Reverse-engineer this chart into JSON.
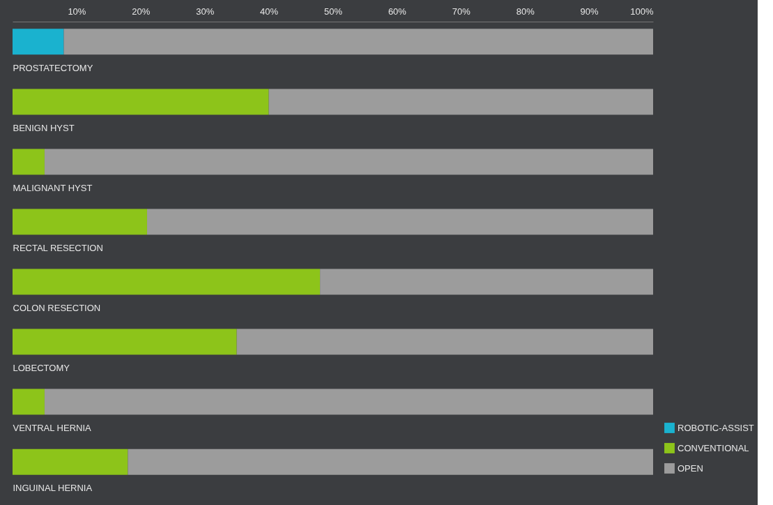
{
  "chart_data": {
    "type": "bar",
    "orientation": "horizontal",
    "stacked": true,
    "categories": [
      "PROSTATECTOMY",
      "BENIGN HYST",
      "MALIGNANT HYST",
      "RECTAL RESECTION",
      "COLON RESECTION",
      "LOBECTOMY",
      "VENTRAL HERNIA",
      "INGUINAL HERNIA"
    ],
    "series": [
      {
        "name": "ROBOTIC-ASSIST",
        "color": "#1ab2cf",
        "values": [
          8,
          null,
          null,
          null,
          null,
          null,
          null,
          null
        ]
      },
      {
        "name": "CONVENTIONAL",
        "color": "#8dc41a",
        "values": [
          null,
          40,
          5,
          21,
          48,
          35,
          5,
          18
        ]
      },
      {
        "name": "OPEN",
        "color": "#9c9c9c",
        "values": [
          92,
          60,
          95,
          79,
          52,
          65,
          95,
          82
        ]
      }
    ],
    "xlim": [
      0,
      100
    ],
    "xticks": [
      {
        "value": 10,
        "label": "10%"
      },
      {
        "value": 20,
        "label": "20%"
      },
      {
        "value": 30,
        "label": "30%"
      },
      {
        "value": 40,
        "label": "40%"
      },
      {
        "value": 50,
        "label": "50%"
      },
      {
        "value": 60,
        "label": "60%"
      },
      {
        "value": 70,
        "label": "70%"
      },
      {
        "value": 80,
        "label": "80%"
      },
      {
        "value": 90,
        "label": "90%"
      },
      {
        "value": 100,
        "label": "100%"
      }
    ],
    "legend": "bottom right",
    "grid": false
  }
}
